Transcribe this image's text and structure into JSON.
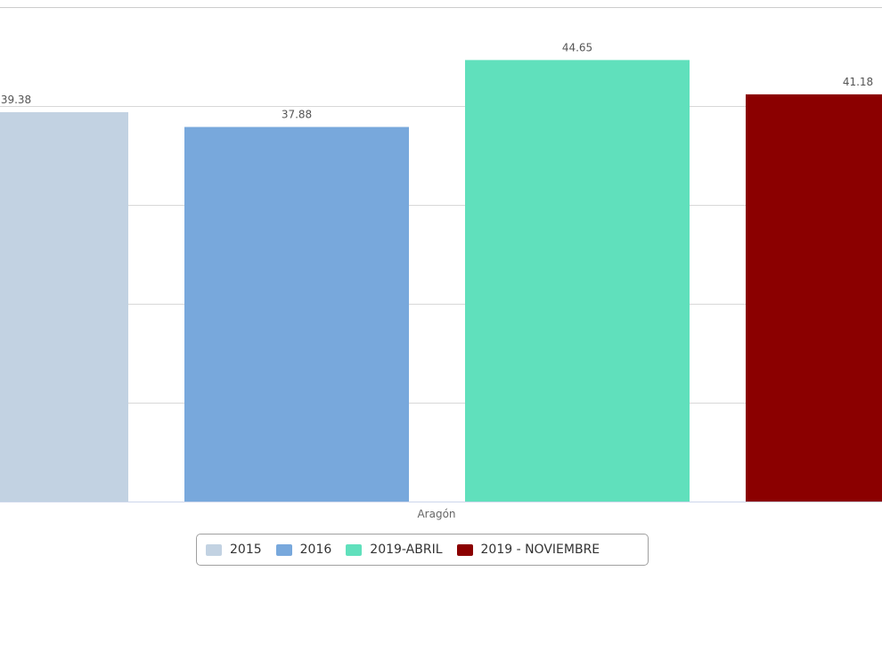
{
  "chart_data": {
    "type": "bar",
    "categories": [
      "Aragón"
    ],
    "series": [
      {
        "name": "2015",
        "values": [
          39.38
        ],
        "color": "#c2d2e2"
      },
      {
        "name": "2016",
        "values": [
          37.88
        ],
        "color": "#78a8dc"
      },
      {
        "name": "2019-ABRIL",
        "values": [
          44.65
        ],
        "color": "#60e0bc"
      },
      {
        "name": "2019 - NOVIEMBRE",
        "values": [
          41.18
        ],
        "color": "#8b0000"
      }
    ],
    "data_labels": [
      "39.38",
      "37.88",
      "44.65",
      "41.18"
    ],
    "title": "",
    "xlabel": "",
    "ylabel": "",
    "ylim": [
      0,
      50
    ],
    "grid": true,
    "legend": "bottom-center"
  }
}
